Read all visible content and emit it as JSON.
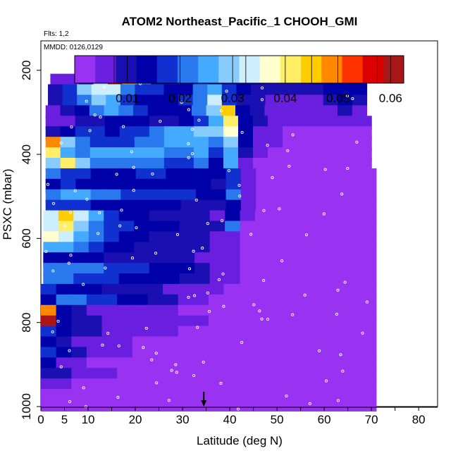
{
  "chart_data": {
    "type": "heatmap",
    "title": "ATOM2 Northeast_Pacific_1 CHOOH_GMI",
    "flights_note": "Flts: 1,2",
    "date_note": "MMDD: 0126,0129",
    "xlabel": "Latitude (deg N)",
    "ylabel": "PSXC (mbar)",
    "xlim": [
      0,
      84
    ],
    "ylim": [
      1000,
      130
    ],
    "x_ticks": [
      0,
      5,
      10,
      20,
      30,
      40,
      50,
      60,
      70,
      80
    ],
    "x_minor_ticks": [
      15,
      25,
      35,
      45,
      55,
      65,
      75,
      85
    ],
    "y_ticks": [
      200,
      400,
      600,
      800,
      1000
    ],
    "y_log_scale": false,
    "colorbar": {
      "ticks": [
        0.01,
        0.02,
        0.03,
        0.04,
        0.05,
        0.06
      ],
      "range": [
        0,
        0.0625
      ],
      "colors": [
        "#9a32f2",
        "#6a1fe0",
        "#1a0fb0",
        "#0000a8",
        "#1030d0",
        "#2a78ee",
        "#44aaff",
        "#88ccff",
        "#cceeff",
        "#ffffd0",
        "#ffee66",
        "#ffcc00",
        "#ff8800",
        "#ff3300",
        "#dd0000",
        "#aa1515"
      ]
    },
    "arrow_marker_latitude": 34.5,
    "series_note": "Layered curtain of CHOOH_GMI mixing ratio along flight track",
    "bands": [
      {
        "p": 200,
        "lat_start": 7.5,
        "lat_end": 67.5,
        "values": [
          0.012,
          0.045,
          0.062,
          0.055,
          0.048,
          0.042,
          0.03,
          0.025,
          0.028,
          0.04,
          0.035,
          0.022,
          0.02,
          0.018,
          0.017,
          0.016,
          0.015,
          0.014,
          0.014,
          0.013,
          0.013,
          0.013
        ]
      },
      {
        "p": 225,
        "lat_start": 2,
        "lat_end": 69,
        "values": [
          0.005,
          0.006,
          0.012,
          0.028,
          0.055,
          0.05,
          0.02,
          0.014,
          0.008,
          0.012,
          0.016,
          0.015,
          0.013,
          0.012,
          0.012,
          0.011,
          0.011,
          0.011,
          0.012,
          0.013,
          0.013,
          0.012
        ]
      },
      {
        "p": 250,
        "lat_start": 1.5,
        "lat_end": 69,
        "values": [
          0.008,
          0.018,
          0.028,
          0.032,
          0.034,
          0.022,
          0.018,
          0.016,
          0.012,
          0.014,
          0.02,
          0.026,
          0.016,
          0.012,
          0.011,
          0.01,
          0.01,
          0.009,
          0.01,
          0.012,
          0.013,
          0.012
        ]
      },
      {
        "p": 275,
        "lat_start": 1.5,
        "lat_end": 69,
        "values": [
          0.01,
          0.016,
          0.022,
          0.03,
          0.024,
          0.018,
          0.014,
          0.012,
          0.014,
          0.016,
          0.022,
          0.034,
          0.016,
          0.01,
          0.008,
          0.006,
          0.006,
          0.006,
          0.007,
          0.01,
          0.012,
          0.011
        ]
      },
      {
        "p": 300,
        "lat_start": 1,
        "lat_end": 69,
        "values": [
          0.006,
          0.01,
          0.014,
          0.02,
          0.024,
          0.02,
          0.016,
          0.014,
          0.012,
          0.015,
          0.02,
          0.03,
          0.045,
          0.012,
          0.009,
          0.006,
          0.005,
          0.005,
          0.005,
          0.006,
          0.008,
          0.007
        ]
      },
      {
        "p": 325,
        "lat_start": 1,
        "lat_end": 70,
        "values": [
          0.004,
          0.006,
          0.008,
          0.01,
          0.012,
          0.014,
          0.012,
          0.011,
          0.01,
          0.014,
          0.018,
          0.026,
          0.042,
          0.012,
          0.008,
          0.005,
          0.004,
          0.004,
          0.004,
          0.005,
          0.005,
          0.004
        ]
      },
      {
        "p": 350,
        "lat_start": 1,
        "lat_end": 70,
        "values": [
          0.008,
          0.014,
          0.018,
          0.016,
          0.015,
          0.016,
          0.018,
          0.02,
          0.024,
          0.026,
          0.028,
          0.03,
          0.038,
          0.014,
          0.007,
          0.004,
          0.003,
          0.003,
          0.003,
          0.003,
          0.003,
          0.003
        ]
      },
      {
        "p": 375,
        "lat_start": 1,
        "lat_end": 70,
        "values": [
          0.05,
          0.03,
          0.02,
          0.016,
          0.016,
          0.018,
          0.02,
          0.022,
          0.024,
          0.024,
          0.024,
          0.022,
          0.03,
          0.012,
          0.006,
          0.004,
          0.003,
          0.003,
          0.003,
          0.003,
          0.003,
          0.003
        ]
      },
      {
        "p": 400,
        "lat_start": 1,
        "lat_end": 70,
        "values": [
          0.04,
          0.025,
          0.022,
          0.024,
          0.026,
          0.026,
          0.026,
          0.024,
          0.022,
          0.022,
          0.024,
          0.018,
          0.026,
          0.008,
          0.004,
          0.003,
          0.002,
          0.002,
          0.002,
          0.002,
          0.002,
          0.002
        ]
      },
      {
        "p": 425,
        "lat_start": 1,
        "lat_end": 70,
        "values": [
          0.028,
          0.042,
          0.03,
          0.022,
          0.02,
          0.02,
          0.02,
          0.02,
          0.018,
          0.018,
          0.02,
          0.015,
          0.024,
          0.006,
          0.003,
          0.002,
          0.002,
          0.002,
          0.002,
          0.002,
          0.002,
          0.002
        ]
      },
      {
        "p": 450,
        "lat_start": 1,
        "lat_end": 71,
        "values": [
          0.02,
          0.018,
          0.016,
          0.014,
          0.014,
          0.015,
          0.016,
          0.016,
          0.015,
          0.014,
          0.014,
          0.012,
          0.018,
          0.006,
          0.003,
          0.002,
          0.002,
          0.002,
          0.002,
          0.002,
          0.002,
          0.002
        ]
      },
      {
        "p": 475,
        "lat_start": 1,
        "lat_end": 71,
        "values": [
          0.012,
          0.016,
          0.014,
          0.012,
          0.012,
          0.013,
          0.014,
          0.014,
          0.013,
          0.012,
          0.012,
          0.01,
          0.016,
          0.005,
          0.002,
          0.002,
          0.002,
          0.001,
          0.001,
          0.001,
          0.001,
          0.001
        ]
      },
      {
        "p": 500,
        "lat_start": 1,
        "lat_end": 71,
        "values": [
          0.022,
          0.024,
          0.024,
          0.022,
          0.02,
          0.019,
          0.018,
          0.018,
          0.017,
          0.016,
          0.015,
          0.012,
          0.02,
          0.005,
          0.002,
          0.002,
          0.001,
          0.001,
          0.001,
          0.001,
          0.001,
          0.001
        ]
      },
      {
        "p": 525,
        "lat_start": 1,
        "lat_end": 71,
        "values": [
          0.016,
          0.018,
          0.016,
          0.014,
          0.013,
          0.013,
          0.013,
          0.013,
          0.012,
          0.011,
          0.01,
          0.008,
          0.014,
          0.004,
          0.002,
          0.001,
          0.001,
          0.001,
          0.001,
          0.001,
          0.001,
          0.001
        ]
      },
      {
        "p": 550,
        "lat_start": 0.5,
        "lat_end": 71,
        "values": [
          0.032,
          0.045,
          0.035,
          0.024,
          0.018,
          0.014,
          0.012,
          0.011,
          0.01,
          0.009,
          0.009,
          0.007,
          0.012,
          0.004,
          0.002,
          0.001,
          0.001,
          0.001,
          0.001,
          0.001,
          0.001,
          0.001
        ]
      },
      {
        "p": 575,
        "lat_start": 0.5,
        "lat_end": 71,
        "values": [
          0.034,
          0.04,
          0.03,
          0.022,
          0.018,
          0.016,
          0.014,
          0.013,
          0.012,
          0.011,
          0.01,
          0.008,
          0.02,
          0.003,
          0.002,
          0.001,
          0.001,
          0.001,
          0.001,
          0.001,
          0.001,
          0.001
        ]
      },
      {
        "p": 600,
        "lat_start": 0.5,
        "lat_end": 71,
        "values": [
          0.036,
          0.032,
          0.026,
          0.02,
          0.016,
          0.014,
          0.012,
          0.011,
          0.01,
          0.009,
          0.008,
          0.006,
          0.004,
          0.002,
          0.001,
          0.001,
          0.001,
          0.001,
          0.001,
          0.001,
          0.001,
          0.001
        ]
      },
      {
        "p": 625,
        "lat_start": 0.5,
        "lat_end": 71,
        "values": [
          0.026,
          0.024,
          0.02,
          0.016,
          0.013,
          0.012,
          0.011,
          0.011,
          0.01,
          0.009,
          0.008,
          0.006,
          0.004,
          0.002,
          0.001,
          0.001,
          0.001,
          0.001,
          0.001,
          0.001,
          0.001,
          0.001
        ]
      },
      {
        "p": 650,
        "lat_start": 0.5,
        "lat_end": 71,
        "values": [
          0.014,
          0.014,
          0.013,
          0.012,
          0.011,
          0.01,
          0.01,
          0.01,
          0.009,
          0.008,
          0.007,
          0.006,
          0.004,
          0.002,
          0.001,
          0.001,
          0.001,
          0.001,
          0.001,
          0.001,
          0.001,
          0.001
        ]
      },
      {
        "p": 675,
        "lat_start": 0.5,
        "lat_end": 71,
        "values": [
          0.022,
          0.022,
          0.021,
          0.02,
          0.018,
          0.017,
          0.016,
          0.015,
          0.014,
          0.012,
          0.01,
          0.007,
          0.004,
          0.002,
          0.001,
          0.001,
          0.001,
          0.001,
          0.001,
          0.001,
          0.001,
          0.001
        ]
      },
      {
        "p": 700,
        "lat_start": 0.5,
        "lat_end": 71,
        "values": [
          0.02,
          0.02,
          0.019,
          0.018,
          0.016,
          0.015,
          0.014,
          0.013,
          0.012,
          0.01,
          0.008,
          0.006,
          0.004,
          0.002,
          0.001,
          0.001,
          0.001,
          0.001,
          0.001,
          0.001,
          0.001,
          0.001
        ]
      },
      {
        "p": 725,
        "lat_start": 0,
        "lat_end": 71,
        "values": [
          0.016,
          0.014,
          0.013,
          0.012,
          0.011,
          0.01,
          0.009,
          0.008,
          0.007,
          0.006,
          0.005,
          0.004,
          0.003,
          0.002,
          0.001,
          0.001,
          0.001,
          0.001,
          0.001,
          0.001,
          0.001,
          0.001
        ]
      },
      {
        "p": 750,
        "lat_start": 0,
        "lat_end": 71,
        "values": [
          0.014,
          0.02,
          0.02,
          0.018,
          0.016,
          0.014,
          0.012,
          0.01,
          0.008,
          0.006,
          0.004,
          0.003,
          0.002,
          0.001,
          0.001,
          0.001,
          0.001,
          0.001,
          0.001,
          0.001,
          0.001,
          0.001
        ]
      },
      {
        "p": 775,
        "lat_start": 0,
        "lat_end": 71,
        "values": [
          0.05,
          0.014,
          0.008,
          0.007,
          0.006,
          0.005,
          0.005,
          0.004,
          0.004,
          0.003,
          0.003,
          0.002,
          0.002,
          0.001,
          0.001,
          0.001,
          0.001,
          0.001,
          0.001,
          0.001,
          0.001,
          0.001
        ]
      },
      {
        "p": 800,
        "lat_start": 0,
        "lat_end": 71,
        "values": [
          0.062,
          0.012,
          0.009,
          0.008,
          0.007,
          0.006,
          0.006,
          0.005,
          0.005,
          0.004,
          0.004,
          0.003,
          0.002,
          0.001,
          0.001,
          0.001,
          0.001,
          0.001,
          0.001,
          0.001,
          0.001,
          0.001
        ]
      },
      {
        "p": 825,
        "lat_start": 0,
        "lat_end": 71,
        "values": [
          0.016,
          0.012,
          0.01,
          0.008,
          0.006,
          0.005,
          0.005,
          0.004,
          0.004,
          0.003,
          0.003,
          0.002,
          0.002,
          0.001,
          0.001,
          0.001,
          0.001,
          0.001,
          0.001,
          0.001,
          0.001,
          0.001
        ]
      },
      {
        "p": 850,
        "lat_start": 0,
        "lat_end": 71,
        "values": [
          0.014,
          0.009,
          0.006,
          0.005,
          0.004,
          0.004,
          0.003,
          0.003,
          0.003,
          0.002,
          0.002,
          0.002,
          0.002,
          0.001,
          0.001,
          0.001,
          0.001,
          0.001,
          0.001,
          0.001,
          0.001,
          0.001
        ]
      },
      {
        "p": 875,
        "lat_start": 0,
        "lat_end": 71,
        "values": [
          0.016,
          0.012,
          0.008,
          0.006,
          0.005,
          0.004,
          0.003,
          0.003,
          0.002,
          0.002,
          0.002,
          0.002,
          0.001,
          0.001,
          0.001,
          0.001,
          0.001,
          0.001,
          0.001,
          0.001,
          0.001,
          0.001
        ]
      },
      {
        "p": 900,
        "lat_start": 0,
        "lat_end": 71,
        "values": [
          0.012,
          0.006,
          0.004,
          0.003,
          0.003,
          0.002,
          0.002,
          0.002,
          0.002,
          0.002,
          0.001,
          0.001,
          0.001,
          0.001,
          0.001,
          0.001,
          0.001,
          0.001,
          0.001,
          0.001,
          0.001,
          0.001
        ]
      },
      {
        "p": 925,
        "lat_start": 0,
        "lat_end": 71,
        "values": [
          0.01,
          0.008,
          0.006,
          0.005,
          0.004,
          0.003,
          0.003,
          0.002,
          0.002,
          0.002,
          0.001,
          0.001,
          0.001,
          0.001,
          0.001,
          0.001,
          0.001,
          0.001,
          0.001,
          0.001,
          0.001,
          0.001
        ]
      },
      {
        "p": 950,
        "lat_start": 0,
        "lat_end": 71,
        "values": [
          0.006,
          0.004,
          0.003,
          0.002,
          0.002,
          0.002,
          0.001,
          0.001,
          0.001,
          0.001,
          0.001,
          0.001,
          0.001,
          0.001,
          0.001,
          0.001,
          0.001,
          0.001,
          0.001,
          0.001,
          0.001,
          0.001
        ]
      },
      {
        "p": 975,
        "lat_start": 0,
        "lat_end": 71,
        "values": [
          0.003,
          0.002,
          0.002,
          0.001,
          0.001,
          0.001,
          0.001,
          0.001,
          0.001,
          0.001,
          0.001,
          0.001,
          0.001,
          0.001,
          0.001,
          0.001,
          0.001,
          0.001,
          0.001,
          0.001,
          0.001,
          0.001
        ]
      },
      {
        "p": 995,
        "lat_start": 0,
        "lat_end": 71,
        "values": [
          0.002,
          0.002,
          0.001,
          0.001,
          0.001,
          0.001,
          0.001,
          0.001,
          0.001,
          0.001,
          0.001,
          0.001,
          0.001,
          0.001,
          0.001,
          0.001,
          0.001,
          0.001,
          0.001,
          0.001,
          0.001,
          0.001
        ]
      }
    ]
  }
}
